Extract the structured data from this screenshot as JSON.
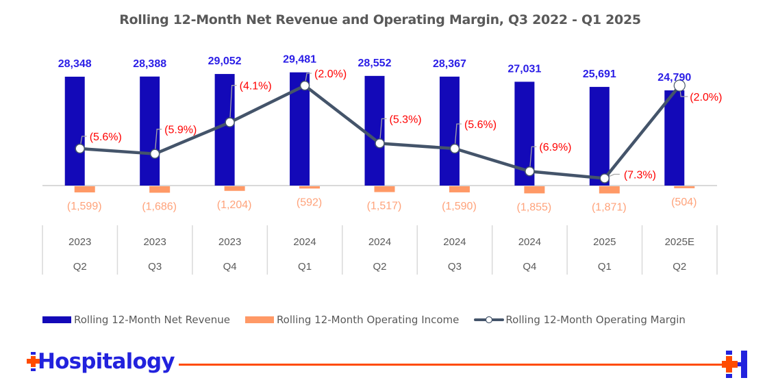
{
  "chart_data": {
    "type": "bar",
    "title": "Rolling 12-Month Net Revenue and Operating Margin, Q3 2022 - Q1 2025",
    "categories": [
      {
        "year": "2023",
        "quarter": "Q2"
      },
      {
        "year": "2023",
        "quarter": "Q3"
      },
      {
        "year": "2023",
        "quarter": "Q4"
      },
      {
        "year": "2024",
        "quarter": "Q1"
      },
      {
        "year": "2024",
        "quarter": "Q2"
      },
      {
        "year": "2024",
        "quarter": "Q3"
      },
      {
        "year": "2024",
        "quarter": "Q4"
      },
      {
        "year": "2025",
        "quarter": "Q1"
      },
      {
        "year": "2025E",
        "quarter": "Q2"
      }
    ],
    "series": [
      {
        "name": "Rolling 12-Month Net Revenue",
        "type": "bar",
        "color": "#1309b8",
        "label_color": "#2a1de6",
        "values": [
          28348,
          28388,
          29052,
          29481,
          28552,
          28367,
          27031,
          25691,
          24790
        ],
        "labels": [
          "28,348",
          "28,388",
          "29,052",
          "29,481",
          "28,552",
          "28,367",
          "27,031",
          "25,691",
          "24,790"
        ]
      },
      {
        "name": "Rolling 12-Month Operating Income",
        "type": "bar",
        "color": "#ff9966",
        "label_color": "#ffa27a",
        "values": [
          -1599,
          -1686,
          -1204,
          -592,
          -1517,
          -1590,
          -1855,
          -1871,
          -504
        ],
        "labels": [
          "(1,599)",
          "(1,686)",
          "(1,204)",
          "(592)",
          "(1,517)",
          "(1,590)",
          "(1,855)",
          "(1,871)",
          "(504)"
        ]
      },
      {
        "name": "Rolling 12-Month Operating Margin",
        "type": "line",
        "axis": "secondary",
        "color": "#44546a",
        "label_color": "#ff0000",
        "values": [
          -5.6,
          -5.9,
          -4.1,
          -2.0,
          -5.3,
          -5.6,
          -6.9,
          -7.3,
          -2.0
        ],
        "labels": [
          "(5.6%)",
          "(5.9%)",
          "(4.1%)",
          "(2.0%)",
          "(5.3%)",
          "(5.6%)",
          "(6.9%)",
          "(7.3%)",
          "(2.0%)"
        ]
      }
    ],
    "xlabel": "",
    "ylabel": "",
    "grid": false,
    "legend": "bottom"
  },
  "brand": {
    "name": "Hospitalogy",
    "accent": "#ff4b00",
    "primary": "#2222dd"
  }
}
